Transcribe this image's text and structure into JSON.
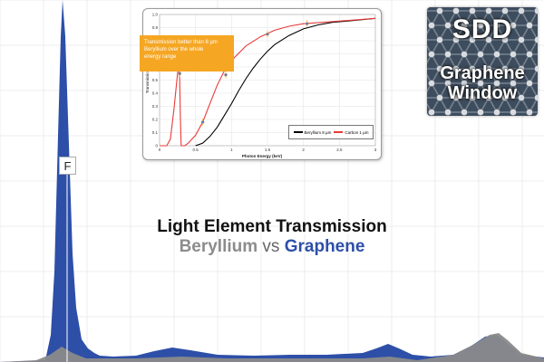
{
  "background_spectrum": {
    "x_range": [
      0,
      600
    ],
    "y_range": [
      0,
      400
    ],
    "graphene_fill": "#2d4fa8",
    "beryllium_fill": "#8a8a8a",
    "graphene_points": [
      [
        0,
        400
      ],
      [
        50,
        398
      ],
      [
        56,
        370
      ],
      [
        60,
        300
      ],
      [
        64,
        150
      ],
      [
        67,
        40
      ],
      [
        69,
        0
      ],
      [
        72,
        40
      ],
      [
        76,
        160
      ],
      [
        80,
        280
      ],
      [
        84,
        340
      ],
      [
        90,
        375
      ],
      [
        97,
        385
      ],
      [
        104,
        390
      ],
      [
        110,
        393
      ],
      [
        125,
        394
      ],
      [
        150,
        393
      ],
      [
        170,
        388
      ],
      [
        190,
        384
      ],
      [
        210,
        387
      ],
      [
        240,
        392
      ],
      [
        280,
        393
      ],
      [
        320,
        392
      ],
      [
        360,
        392
      ],
      [
        400,
        390
      ],
      [
        415,
        385
      ],
      [
        428,
        380
      ],
      [
        440,
        385
      ],
      [
        455,
        392
      ],
      [
        475,
        394
      ],
      [
        500,
        392
      ],
      [
        520,
        382
      ],
      [
        535,
        372
      ],
      [
        548,
        370
      ],
      [
        560,
        380
      ],
      [
        575,
        392
      ],
      [
        600,
        395
      ]
    ],
    "beryllium_points": [
      [
        0,
        400
      ],
      [
        40,
        398
      ],
      [
        55,
        392
      ],
      [
        68,
        383
      ],
      [
        80,
        390
      ],
      [
        95,
        396
      ],
      [
        150,
        396
      ],
      [
        200,
        394
      ],
      [
        250,
        396
      ],
      [
        400,
        396
      ],
      [
        430,
        394
      ],
      [
        460,
        398
      ],
      [
        500,
        392
      ],
      [
        520,
        382
      ],
      [
        540,
        370
      ],
      [
        550,
        368
      ],
      [
        560,
        376
      ],
      [
        575,
        390
      ],
      [
        600,
        396
      ]
    ],
    "peak_label": "F"
  },
  "inset": {
    "chart_data": {
      "type": "line",
      "xlabel": "Photon Energy (keV)",
      "ylabel": "Transmission",
      "xlim": [
        0,
        3
      ],
      "ylim": [
        0,
        1
      ],
      "x_ticks": [
        "0",
        "0.5",
        "1",
        "1.5",
        "2",
        "2.5",
        "3"
      ],
      "y_ticks": [
        "0",
        "0.1",
        "0.2",
        "0.3",
        "0.4",
        "0.5",
        "0.6",
        "0.7",
        "0.8",
        "0.9",
        "1.0"
      ],
      "grid": true,
      "legend_position": "bottom-right",
      "series": [
        {
          "name": "Beryllium 8 µm",
          "color": "#000000",
          "x": [
            0.5,
            0.6,
            0.7,
            0.8,
            0.9,
            1.0,
            1.1,
            1.2,
            1.3,
            1.4,
            1.5,
            1.6,
            1.8,
            2.0,
            2.2,
            2.4,
            2.6,
            2.8,
            3.0
          ],
          "y": [
            0.0,
            0.02,
            0.07,
            0.14,
            0.23,
            0.32,
            0.42,
            0.51,
            0.59,
            0.66,
            0.72,
            0.77,
            0.84,
            0.89,
            0.92,
            0.94,
            0.95,
            0.96,
            0.97
          ]
        },
        {
          "name": "Carbon 1 µm",
          "color": "#e83a3a",
          "x": [
            0.0,
            0.1,
            0.15,
            0.2,
            0.25,
            0.27,
            0.28,
            0.29,
            0.3,
            0.35,
            0.4,
            0.5,
            0.6,
            0.7,
            0.8,
            0.9,
            1.0,
            1.2,
            1.4,
            1.6,
            1.8,
            2.0,
            2.5,
            3.0
          ],
          "y": [
            0.0,
            0.0,
            0.05,
            0.28,
            0.55,
            0.62,
            0.5,
            0.2,
            0.0,
            0.0,
            0.02,
            0.08,
            0.18,
            0.32,
            0.46,
            0.57,
            0.65,
            0.76,
            0.83,
            0.88,
            0.91,
            0.93,
            0.95,
            0.97
          ]
        },
        {
          "name": "",
          "color": "#4a7bd0",
          "x": [
            0.28,
            0.6,
            0.92,
            1.5,
            2.05
          ],
          "y": [
            0.55,
            0.18,
            0.54,
            0.85,
            0.93
          ]
        }
      ]
    },
    "callout_lines": [
      "Transmission better than 8 µm",
      "Beryllium over the whole",
      "energy range"
    ]
  },
  "badge": {
    "line1": "SDD",
    "line2": "Graphene",
    "line3": "Window",
    "colors": {
      "bg": "#3e4d5e",
      "node": "#d9dde2",
      "bond": "#8f9aa6"
    }
  },
  "headline": {
    "line1": "Light Element Transmission",
    "line2_part1": "Beryllium",
    "line2_vs": " vs ",
    "line2_part2": "Graphene"
  }
}
